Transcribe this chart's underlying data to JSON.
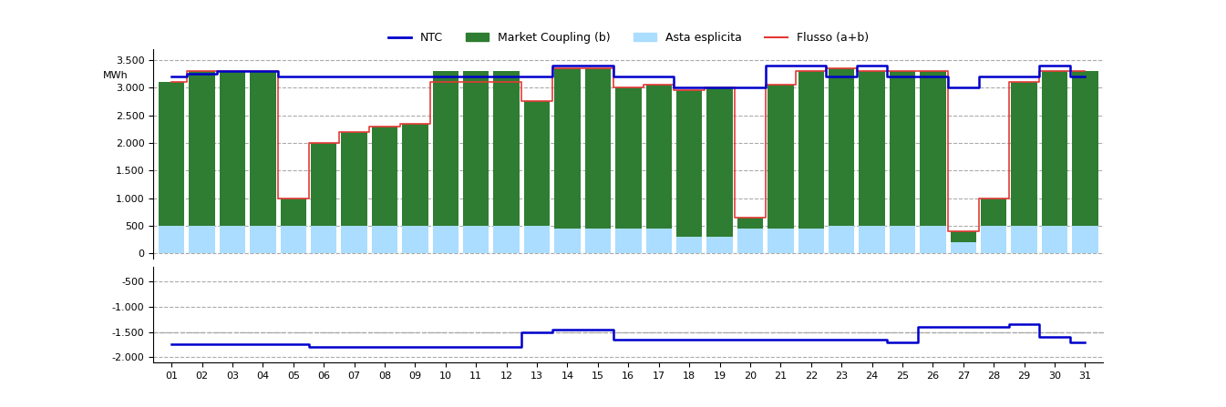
{
  "days": [
    1,
    2,
    3,
    4,
    5,
    6,
    7,
    8,
    9,
    10,
    11,
    12,
    13,
    14,
    15,
    16,
    17,
    18,
    19,
    20,
    21,
    22,
    23,
    24,
    25,
    26,
    27,
    28,
    29,
    30,
    31
  ],
  "asta_esplicita": [
    500,
    500,
    500,
    500,
    500,
    500,
    500,
    500,
    500,
    500,
    500,
    500,
    500,
    450,
    450,
    450,
    450,
    300,
    300,
    450,
    450,
    450,
    500,
    500,
    500,
    500,
    200,
    500,
    500,
    500,
    500
  ],
  "market_coupling": [
    2600,
    2800,
    2800,
    2800,
    500,
    1500,
    1700,
    1800,
    1850,
    2800,
    2800,
    2800,
    2250,
    2900,
    2900,
    2550,
    2600,
    2650,
    2700,
    200,
    2600,
    2850,
    2850,
    2800,
    2800,
    2800,
    200,
    500,
    2600,
    2800,
    2800
  ],
  "flusso": [
    3100,
    3300,
    3300,
    3300,
    1000,
    2000,
    2200,
    2300,
    2350,
    3100,
    3100,
    3100,
    2750,
    3350,
    3350,
    3000,
    3050,
    2950,
    3000,
    650,
    3050,
    3300,
    3350,
    3300,
    3300,
    3300,
    400,
    1000,
    3100,
    3300,
    3300
  ],
  "ntc_top": [
    3200,
    3250,
    3300,
    3300,
    3200,
    3200,
    3200,
    3200,
    3200,
    3200,
    3200,
    3200,
    3200,
    3400,
    3400,
    3200,
    3200,
    3000,
    3000,
    3000,
    3400,
    3400,
    3200,
    3400,
    3200,
    3200,
    3000,
    3200,
    3200,
    3400,
    3200
  ],
  "ntc_bottom": [
    -1750,
    -1750,
    -1750,
    -1750,
    -1750,
    -1800,
    -1800,
    -1800,
    -1800,
    -1800,
    -1800,
    -1800,
    -1500,
    -1450,
    -1450,
    -1650,
    -1650,
    -1650,
    -1650,
    -1650,
    -1650,
    -1650,
    -1650,
    -1650,
    -1700,
    -1400,
    -1400,
    -1400,
    -1350,
    -1600,
    -1700
  ],
  "colors": {
    "market_coupling": "#2e7d32",
    "asta_esplicita": "#aaddff",
    "flusso": "#e53935",
    "ntc": "#0000cc",
    "grid": "#aaaaaa",
    "background": "#ffffff"
  },
  "upper_ylim": [
    -100,
    3700
  ],
  "lower_ylim": [
    -2100,
    -200
  ],
  "upper_yticks": [
    0,
    500,
    1000,
    1500,
    2000,
    2500,
    3000,
    3500
  ],
  "lower_yticks": [
    -2000,
    -1500,
    -1000,
    -500
  ],
  "upper_ytick_labels": [
    "0",
    "500",
    "1.000",
    "1.500",
    "2.000",
    "2.500",
    "3.000",
    "3.500"
  ],
  "lower_ytick_labels": [
    "-2.000",
    "-1.500",
    "-1.000",
    "-500"
  ],
  "ylabel": "MWh",
  "legend_items": [
    "NTC",
    "Market Coupling (b)",
    "Asta esplicita",
    "Flusso (a+b)"
  ]
}
